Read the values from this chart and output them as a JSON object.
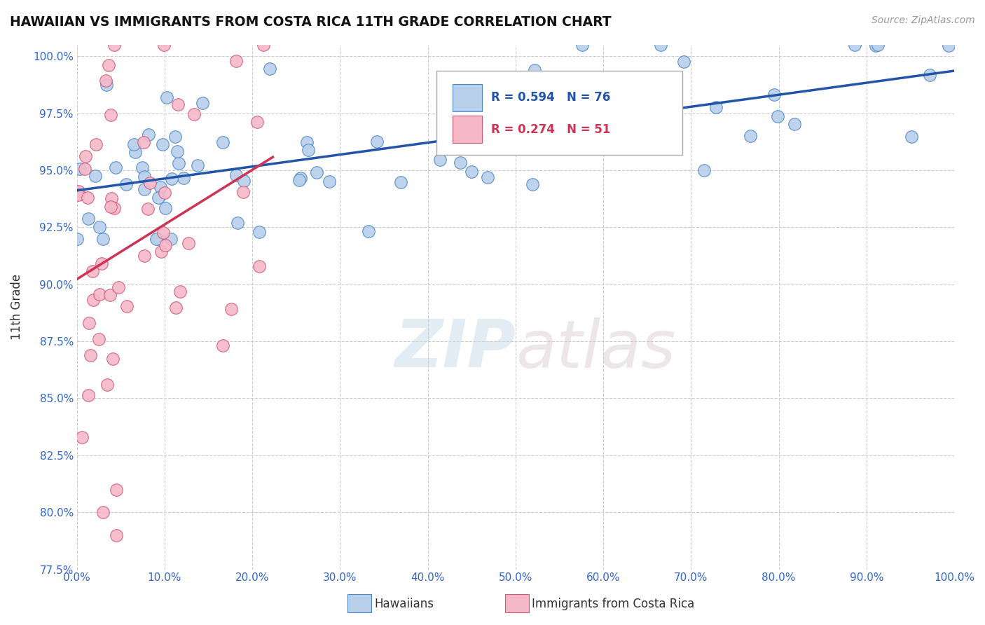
{
  "title": "HAWAIIAN VS IMMIGRANTS FROM COSTA RICA 11TH GRADE CORRELATION CHART",
  "source_text": "Source: ZipAtlas.com",
  "ylabel": "11th Grade",
  "xlim": [
    0.0,
    1.0
  ],
  "ylim": [
    0.775,
    1.005
  ],
  "ytick_vals": [
    0.775,
    0.8,
    0.825,
    0.85,
    0.875,
    0.9,
    0.925,
    0.95,
    0.975,
    1.0
  ],
  "xtick_vals": [
    0.0,
    0.1,
    0.2,
    0.3,
    0.4,
    0.5,
    0.6,
    0.7,
    0.8,
    0.9,
    1.0
  ],
  "blue_R": 0.594,
  "blue_N": 76,
  "pink_R": 0.274,
  "pink_N": 51,
  "blue_scatter_color": "#b8d0ea",
  "blue_edge_color": "#4a86c8",
  "pink_scatter_color": "#f5b8c8",
  "pink_edge_color": "#d05878",
  "blue_line_color": "#2255aa",
  "pink_line_color": "#cc3355",
  "watermark_zip": "ZIP",
  "watermark_atlas": "atlas",
  "legend_label_blue": "Hawaiians",
  "legend_label_pink": "Immigrants from Costa Rica",
  "background_color": "#ffffff",
  "grid_color": "#cccccc",
  "tick_label_color": "#3366cc",
  "title_color": "#111111",
  "source_color": "#999999",
  "ylabel_color": "#333333",
  "blue_x": [
    0.005,
    0.008,
    0.01,
    0.012,
    0.015,
    0.02,
    0.022,
    0.025,
    0.03,
    0.03,
    0.035,
    0.04,
    0.04,
    0.045,
    0.05,
    0.05,
    0.055,
    0.06,
    0.06,
    0.065,
    0.07,
    0.07,
    0.075,
    0.08,
    0.08,
    0.085,
    0.09,
    0.1,
    0.1,
    0.11,
    0.12,
    0.13,
    0.14,
    0.15,
    0.16,
    0.17,
    0.18,
    0.19,
    0.2,
    0.22,
    0.24,
    0.25,
    0.27,
    0.28,
    0.3,
    0.32,
    0.35,
    0.38,
    0.4,
    0.42,
    0.45,
    0.48,
    0.5,
    0.52,
    0.55,
    0.58,
    0.6,
    0.62,
    0.65,
    0.68,
    0.7,
    0.72,
    0.75,
    0.78,
    0.8,
    0.82,
    0.85,
    0.88,
    0.9,
    0.92,
    0.95,
    0.97,
    0.98,
    0.99,
    1.0,
    1.0
  ],
  "blue_y": [
    0.924,
    0.926,
    0.928,
    0.93,
    0.925,
    0.932,
    0.928,
    0.934,
    0.93,
    0.935,
    0.932,
    0.936,
    0.93,
    0.935,
    0.938,
    0.932,
    0.934,
    0.936,
    0.94,
    0.938,
    0.942,
    0.935,
    0.938,
    0.942,
    0.938,
    0.94,
    0.944,
    0.942,
    0.946,
    0.948,
    0.945,
    0.944,
    0.948,
    0.95,
    0.946,
    0.952,
    0.948,
    0.955,
    0.952,
    0.955,
    0.958,
    0.953,
    0.956,
    0.942,
    0.95,
    0.96,
    0.958,
    0.955,
    0.962,
    0.968,
    0.965,
    0.945,
    0.958,
    0.97,
    0.955,
    0.972,
    0.968,
    0.94,
    0.968,
    0.938,
    0.975,
    0.962,
    0.97,
    0.938,
    0.975,
    0.968,
    0.978,
    0.965,
    0.98,
    0.985,
    0.978,
    0.99,
    0.988,
    0.998,
    1.0,
    1.0
  ],
  "pink_x": [
    0.005,
    0.006,
    0.007,
    0.008,
    0.008,
    0.009,
    0.01,
    0.01,
    0.01,
    0.012,
    0.012,
    0.013,
    0.014,
    0.014,
    0.015,
    0.015,
    0.016,
    0.017,
    0.017,
    0.018,
    0.018,
    0.019,
    0.02,
    0.02,
    0.021,
    0.022,
    0.023,
    0.024,
    0.025,
    0.027,
    0.028,
    0.03,
    0.032,
    0.035,
    0.038,
    0.04,
    0.042,
    0.045,
    0.05,
    0.055,
    0.06,
    0.065,
    0.07,
    0.075,
    0.08,
    0.09,
    0.1,
    0.12,
    0.015,
    0.02,
    0.025
  ],
  "pink_y": [
    0.93,
    0.935,
    0.928,
    0.932,
    0.94,
    0.935,
    0.93,
    0.938,
    0.925,
    0.932,
    0.926,
    0.93,
    0.935,
    0.928,
    0.932,
    0.936,
    0.938,
    0.93,
    0.935,
    0.928,
    0.934,
    0.935,
    0.94,
    0.933,
    0.938,
    0.935,
    0.94,
    0.942,
    0.938,
    0.932,
    0.936,
    0.94,
    0.942,
    0.945,
    0.94,
    0.946,
    0.942,
    0.948,
    0.945,
    0.948,
    0.95,
    0.952,
    0.945,
    0.95,
    0.853,
    0.86,
    0.855,
    0.86,
    0.8,
    0.795,
    0.798
  ]
}
